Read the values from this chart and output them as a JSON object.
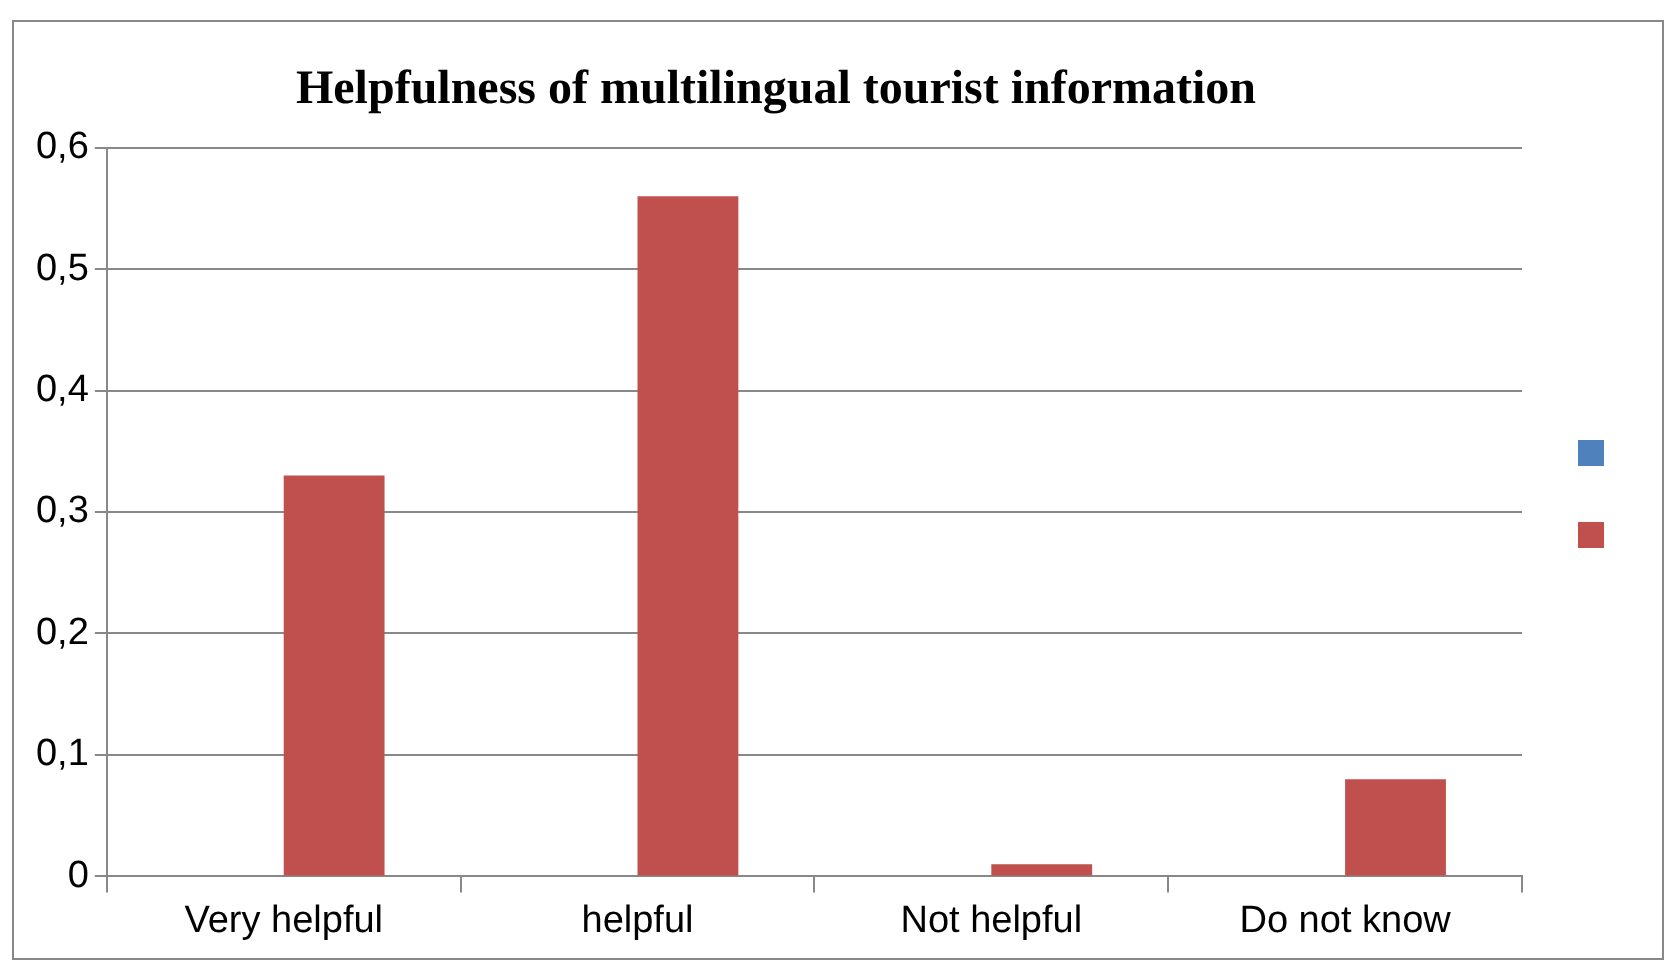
{
  "chart_data": {
    "type": "bar",
    "title": "Helpfulness of multilingual tourist information",
    "categories": [
      "Very helpful",
      "helpful",
      "Not helpful",
      "Do not know"
    ],
    "series": [
      {
        "color": "#4f81bd",
        "values": [
          null,
          null,
          null,
          null
        ]
      },
      {
        "color": "#c0504d",
        "values": [
          0.33,
          0.56,
          0.01,
          0.08
        ]
      }
    ],
    "ylim": [
      0,
      0.6
    ],
    "yticks": [
      {
        "value": 0,
        "label": "0"
      },
      {
        "value": 0.1,
        "label": "0,1"
      },
      {
        "value": 0.2,
        "label": "0,2"
      },
      {
        "value": 0.3,
        "label": "0,3"
      },
      {
        "value": 0.4,
        "label": "0,4"
      },
      {
        "value": 0.5,
        "label": "0,5"
      },
      {
        "value": 0.6,
        "label": "0,6"
      }
    ],
    "grid": "y"
  }
}
